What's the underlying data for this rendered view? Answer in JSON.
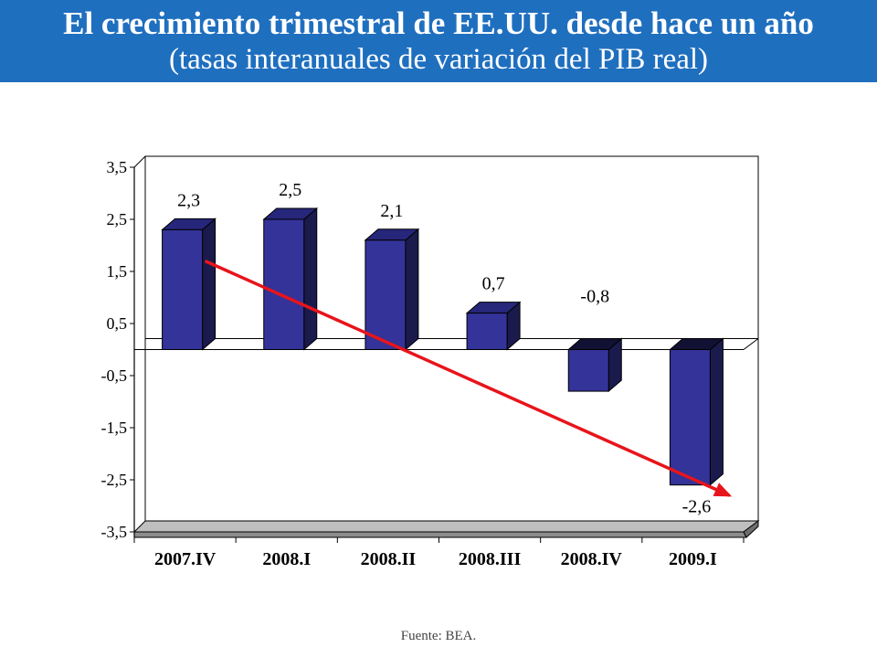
{
  "header": {
    "title": "El crecimiento trimestral de EE.UU. desde hace un año",
    "subtitle": "(tasas interanuales de variación del PIB real)"
  },
  "source": "Fuente: BEA.",
  "colors": {
    "header_bg": "#1f6fbf",
    "bar_front": "#333399",
    "bar_side": "#1a1a4d",
    "bar_top": "#26267a",
    "trend_arrow": "#e8141b"
  },
  "chart_data": {
    "type": "bar",
    "style": "3d",
    "categories": [
      "2007.IV",
      "2008.I",
      "2008.II",
      "2008.III",
      "2008.IV",
      "2009.I"
    ],
    "values": [
      2.3,
      2.5,
      2.1,
      0.7,
      -0.8,
      -2.6
    ],
    "data_labels": [
      "2,3",
      "2,5",
      "2,1",
      "0,7",
      "-0,8",
      "-2,6"
    ],
    "ylim": [
      -3.5,
      3.5
    ],
    "yticks": [
      3.5,
      2.5,
      1.5,
      0.5,
      -0.5,
      -1.5,
      -2.5,
      -3.5
    ],
    "ytick_labels": [
      "3,5",
      "2,5",
      "1,5",
      "0,5",
      "-0,5",
      "-1,5",
      "-2,5",
      "-3,5"
    ],
    "grid": false,
    "legend": "none",
    "trend_arrow": {
      "from_category": "2007.IV",
      "to_category": "2009.I",
      "direction": "down"
    }
  }
}
